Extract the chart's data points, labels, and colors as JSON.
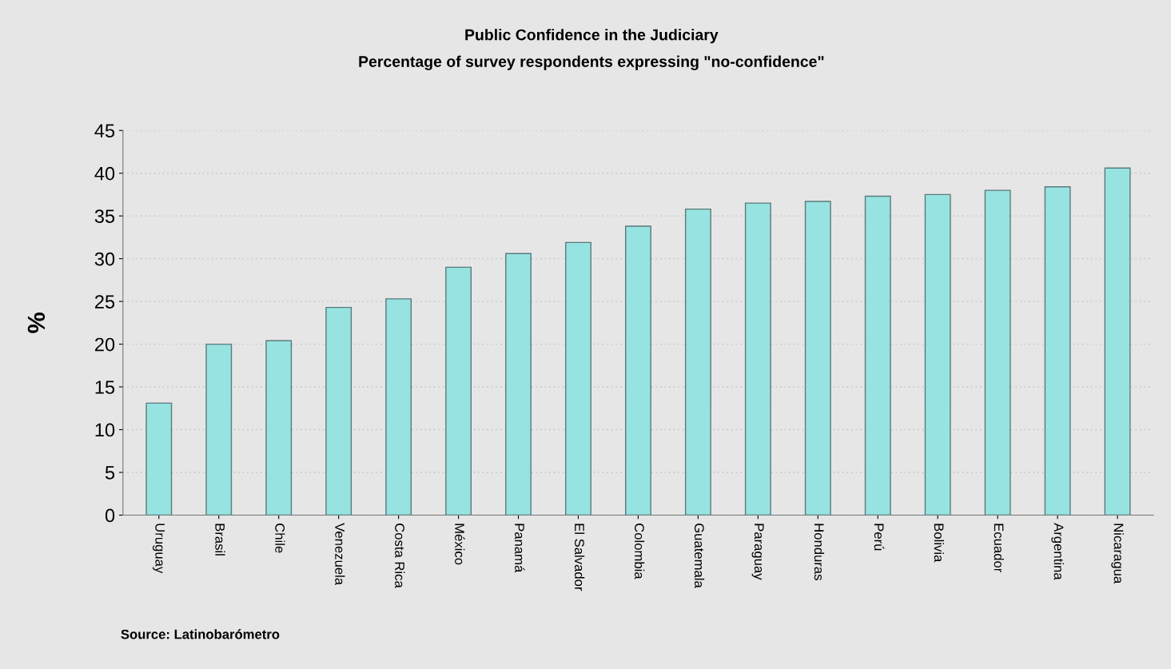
{
  "chart_data": {
    "type": "bar",
    "title": "Public Confidence in the Judiciary",
    "subtitle": "Percentage of survey respondents expressing \"no-confidence\"",
    "ylabel": "%",
    "categories": [
      "Uruguay",
      "Brasil",
      "Chile",
      "Venezuela",
      "Costa Rica",
      "México",
      "Panamá",
      "El Salvador",
      "Colombia",
      "Guatemala",
      "Paraguay",
      "Honduras",
      "Perú",
      "Bolivia",
      "Ecuador",
      "Argentina",
      "Nicaragua"
    ],
    "values": [
      13.1,
      20.0,
      20.4,
      24.3,
      25.3,
      29.0,
      30.6,
      31.9,
      33.8,
      35.8,
      36.5,
      36.7,
      37.3,
      37.5,
      38.0,
      38.4,
      40.6
    ],
    "color": "#97e3e1",
    "ylim": [
      0,
      45
    ],
    "yticks": [
      0,
      5,
      10,
      15,
      20,
      25,
      30,
      35,
      40,
      45
    ],
    "grid": "y",
    "annotations": [
      "Source: Latinobarómetro"
    ]
  }
}
